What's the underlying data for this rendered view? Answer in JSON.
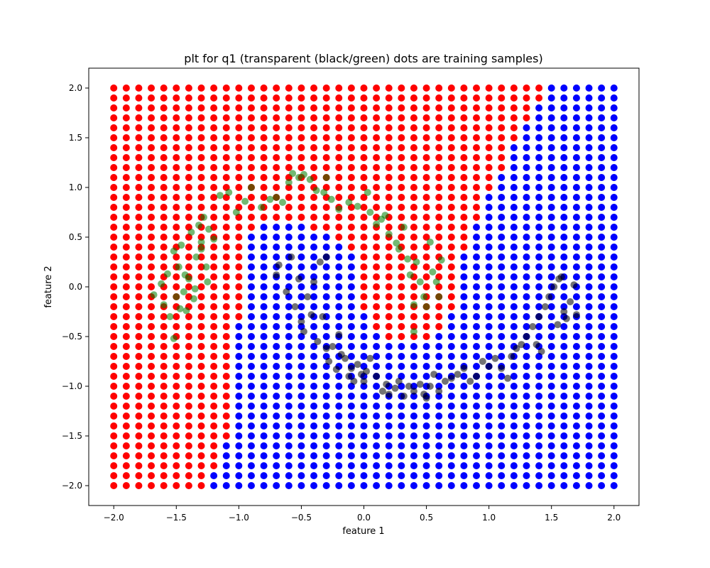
{
  "chart_data": {
    "type": "scatter",
    "title": "plt for q1 (transparent (black/green) dots are training samples)",
    "xlabel": "feature 1",
    "ylabel": "feature 2",
    "xlim": [
      -2.2,
      2.2
    ],
    "ylim": [
      -2.2,
      2.2
    ],
    "xticks": [
      "−2.0",
      "−1.5",
      "−1.0",
      "−0.5",
      "0.0",
      "0.5",
      "1.0",
      "1.5",
      "2.0"
    ],
    "yticks": [
      "−2.0",
      "−1.5",
      "−1.0",
      "−0.5",
      "0.0",
      "0.5",
      "1.0",
      "1.5",
      "2.0"
    ],
    "grid": false,
    "legend": "none",
    "colors": {
      "class_red": "#ff0000",
      "class_blue": "#0000ff",
      "train_green": "#008000",
      "train_black": "#000000"
    },
    "decision_grid": {
      "x_min": -2.0,
      "x_max": 2.0,
      "y_min": -2.0,
      "y_max": 2.0,
      "step": 0.1,
      "rows_top_to_bottom": [
        "RRRRRRRRRRRRRRRRRRRRRRRRRRRRRRRRRRRBBBBBB",
        "RRRRRRRRRRRRRRRRRRRRRRRRRRRRRRRRRRRBBBBBB",
        "RRRRRRRRRRRRRRRRRRRRRRRRRRRRRRRRRRBBBBBBB",
        "RRRRRRRRRRRRRRRRRRRRRRRRRRRRRRRRRRBBBBBBB",
        "RRRRRRRRRRRRRRRRRRRRRRRRRRRRRRRRRBBBBBBBB",
        "RRRRRRRRRRRRRRRRRRRRRRRRRRRRRRRRRBBBBBBBB",
        "RRRRRRRRRRRRRRRRRRRRRRRRRRRRRRRRBBBBBBBBB",
        "RRRRRRRRRRRRRRRRRRRRRRRRRRRRRRRRBBBBBBBBB",
        "RRRRRRRRRRRRRRRRRRRRRRRRRRRRRRRRBBBBBBBBB",
        "RRRRRRRRRRRRRRRRRRRRRRRRRRRRRRRBBBBBBBBBB",
        "RRRRRRRRRRRRRRRRRRRRRRRRRRRRRRRBBBBBBBBBB",
        "RRRRRRRRRRRRRRRRRRRRRRRRRRRRRRBBBBBBBBBBB",
        "RRRRRRRRRRRRRRRRRRRRRRRRRRRRRRBBBBBBBBBBB",
        "RRRRRRRRRRRRRRRRRRRRRRRRRRRRRRBBBBBBBBBBB",
        "RRRRRRRRRRRRBBBBRRRRRRRRRRRRRBBBBBBBBBBBB",
        "RRRRRRRRRRRBBBBBBBRRRRRRRRRRRBBBBBBBBBBBB",
        "RRRRRRRRRRRBBBBBBBBRRRRRRRRRRBBBBBBBBBBBB",
        "RRRRRRRRRRRBBBBBBBBBRRRRRRRRBBBBBBBBBBBBB",
        "RRRRRRRRRRRBBBBBBBBBRRRRRRRRBBBBBBBBBBBBB",
        "RRRRRRRRRRRBBBBBBBBBRRRRRRRRBBBBBBBBBBBBB",
        "RRRRRRRRRRRBBBBBBBBBRRRRRRRRBBBBBBBBBBBBB",
        "RRRRRRRRRRRBBBBBBBBBRRRRRRRRBBBBBBBBBBBBB",
        "RRRRRRRRRRRBBBBBBBBBRRRRRRRRBBBBBBBBBBBBB",
        "RRRRRRRRRRRBBBBBBBBBBRRRRRRBBBBBBBBBBBBBB",
        "RRRRRRRRRRBBBBBBBBBBBRRRRRRBBBBBBBBBBBBBB",
        "RRRRRRRRRRBBBBBBBBBBBBRRRRBBBBBBBBBBBBBBB",
        "RRRRRRRRRRBBBBBBBBBBBBBBBBBBBBBBBBBBBBBBB",
        "RRRRRRRRRRBBBBBBBBBBBBBBBBBBBBBBBBBBBBBBB",
        "RRRRRRRRRRBBBBBBBBBBBBBBBBBBBBBBBBBBBBBBB",
        "RRRRRRRRRRBBBBBBBBBBBBBBBBBBBBBBBBBBBBBBB",
        "RRRRRRRRRRBBBBBBBBBBBBBBBBBBBBBBBBBBBBBBB",
        "RRRRRRRRRRBBBBBBBBBBBBBBBBBBBBBBBBBBBBBBB",
        "RRRRRRRRRRBBBBBBBBBBBBBBBBBBBBBBBBBBBBBBB",
        "RRRRRRRRRRBBBBBBBBBBBBBBBBBBBBBBBBBBBBBBB",
        "RRRRRRRRRRBBBBBBBBBBBBBBBBBBBBBBBBBBBBBBB",
        "RRRRRRRRRRBBBBBBBBBBBBBBBBBBBBBBBBBBBBBBB",
        "RRRRRRRRRBBBBBBBBBBBBBBBBBBBBBBBBBBBBBBBB",
        "RRRRRRRRRBBBBBBBBBBBBBBBBBBBBBBBBBBBBBBBB",
        "RRRRRRRRRBBBBBBBBBBBBBBBBBBBBBBBBBBBBBBBB",
        "RRRRRRRRBBBBBBBBBBBBBBBBBBBBBBBBBBBBBBBBB",
        "RRRRRRRRBBBBBBBBBBBBBBBBBBBBBBBBBBBBBBBBB"
      ]
    },
    "training_green": [
      [
        -1.68,
        -0.08
      ],
      [
        -1.62,
        0.03
      ],
      [
        -1.6,
        -0.18
      ],
      [
        -1.57,
        0.13
      ],
      [
        -1.55,
        -0.3
      ],
      [
        -1.52,
        0.36
      ],
      [
        -1.5,
        -0.1
      ],
      [
        -1.48,
        0.2
      ],
      [
        -1.46,
        0.42
      ],
      [
        -1.44,
        -0.05
      ],
      [
        -1.42,
        -0.24
      ],
      [
        -1.4,
        0.08
      ],
      [
        -1.38,
        0.55
      ],
      [
        -1.36,
        -0.12
      ],
      [
        -1.34,
        0.3
      ],
      [
        -1.32,
        0.62
      ],
      [
        -1.3,
        0.45
      ],
      [
        -1.28,
        0.7
      ],
      [
        -1.26,
        0.2
      ],
      [
        -1.24,
        0.58
      ],
      [
        -1.2,
        0.48
      ],
      [
        -1.15,
        0.92
      ],
      [
        -1.08,
        0.95
      ],
      [
        -1.02,
        0.75
      ],
      [
        -0.95,
        0.86
      ],
      [
        -0.9,
        1.0
      ],
      [
        -0.82,
        0.8
      ],
      [
        -0.75,
        0.88
      ],
      [
        -0.7,
        0.9
      ],
      [
        -0.65,
        0.85
      ],
      [
        -0.6,
        1.05
      ],
      [
        -0.57,
        1.14
      ],
      [
        -0.52,
        1.1
      ],
      [
        -0.48,
        1.13
      ],
      [
        -0.43,
        1.08
      ],
      [
        -0.38,
        0.97
      ],
      [
        -0.32,
        0.95
      ],
      [
        -0.3,
        1.1
      ],
      [
        -0.26,
        0.88
      ],
      [
        -0.2,
        0.78
      ],
      [
        -0.12,
        0.85
      ],
      [
        -0.05,
        0.81
      ],
      [
        0.03,
        0.95
      ],
      [
        0.05,
        0.75
      ],
      [
        0.1,
        0.63
      ],
      [
        0.14,
        0.68
      ],
      [
        0.17,
        0.72
      ],
      [
        0.2,
        0.53
      ],
      [
        0.26,
        0.44
      ],
      [
        0.28,
        0.38
      ],
      [
        0.32,
        0.6
      ],
      [
        0.35,
        0.28
      ],
      [
        0.37,
        0.12
      ],
      [
        0.4,
        -0.18
      ],
      [
        0.42,
        0.25
      ],
      [
        0.45,
        0.05
      ],
      [
        0.48,
        -0.1
      ],
      [
        0.5,
        -0.2
      ],
      [
        0.53,
        0.45
      ],
      [
        0.55,
        0.15
      ],
      [
        0.58,
        0.05
      ],
      [
        0.6,
        -0.1
      ],
      [
        0.62,
        0.27
      ],
      [
        0.4,
        -0.45
      ],
      [
        -1.52,
        -0.52
      ],
      [
        -1.47,
        -0.22
      ],
      [
        -1.43,
        0.12
      ],
      [
        -1.35,
        -0.02
      ],
      [
        -1.3,
        0.38
      ],
      [
        -1.25,
        0.05
      ]
    ],
    "training_black": [
      [
        -0.7,
        0.12
      ],
      [
        -0.68,
        0.22
      ],
      [
        -0.62,
        -0.05
      ],
      [
        -0.58,
        0.3
      ],
      [
        -0.55,
        -0.2
      ],
      [
        -0.52,
        0.08
      ],
      [
        -0.5,
        -0.35
      ],
      [
        -0.48,
        -0.45
      ],
      [
        -0.45,
        -0.1
      ],
      [
        -0.42,
        -0.28
      ],
      [
        -0.4,
        0.05
      ],
      [
        -0.37,
        -0.55
      ],
      [
        -0.35,
        0.25
      ],
      [
        -0.33,
        -0.3
      ],
      [
        -0.3,
        -0.62
      ],
      [
        -0.28,
        -0.75
      ],
      [
        -0.25,
        -0.6
      ],
      [
        -0.22,
        -0.83
      ],
      [
        -0.2,
        -0.48
      ],
      [
        -0.18,
        -0.68
      ],
      [
        -0.15,
        -0.72
      ],
      [
        -0.12,
        -0.9
      ],
      [
        -0.1,
        -0.82
      ],
      [
        -0.08,
        -0.95
      ],
      [
        -0.05,
        -0.78
      ],
      [
        -0.02,
        -0.88
      ],
      [
        0.02,
        -0.85
      ],
      [
        0.05,
        -0.72
      ],
      [
        0.1,
        -0.9
      ],
      [
        0.15,
        -1.05
      ],
      [
        0.18,
        -0.98
      ],
      [
        0.2,
        -1.08
      ],
      [
        0.25,
        -1.02
      ],
      [
        0.28,
        -0.95
      ],
      [
        0.32,
        -1.1
      ],
      [
        0.36,
        -1.0
      ],
      [
        0.4,
        -1.05
      ],
      [
        0.45,
        -0.98
      ],
      [
        0.48,
        -1.08
      ],
      [
        0.5,
        -1.12
      ],
      [
        0.53,
        -1.0
      ],
      [
        0.56,
        -0.88
      ],
      [
        0.6,
        -1.05
      ],
      [
        0.65,
        -0.95
      ],
      [
        0.7,
        -0.92
      ],
      [
        0.75,
        -0.88
      ],
      [
        0.8,
        -0.82
      ],
      [
        0.85,
        -0.95
      ],
      [
        0.9,
        -0.9
      ],
      [
        0.95,
        -0.75
      ],
      [
        1.0,
        -0.8
      ],
      [
        1.05,
        -0.72
      ],
      [
        1.1,
        -0.82
      ],
      [
        1.15,
        -0.92
      ],
      [
        1.18,
        -0.7
      ],
      [
        1.22,
        -0.62
      ],
      [
        1.26,
        -0.58
      ],
      [
        1.3,
        -0.5
      ],
      [
        1.35,
        -0.4
      ],
      [
        1.4,
        -0.3
      ],
      [
        1.45,
        -0.2
      ],
      [
        1.48,
        -0.1
      ],
      [
        1.52,
        0.0
      ],
      [
        1.56,
        0.08
      ],
      [
        1.6,
        -0.25
      ],
      [
        1.62,
        -0.32
      ],
      [
        1.65,
        -0.15
      ],
      [
        1.68,
        0.02
      ],
      [
        1.7,
        -0.28
      ],
      [
        1.38,
        -0.58
      ],
      [
        1.42,
        -0.65
      ],
      [
        1.55,
        -0.38
      ],
      [
        1.58,
        0.1
      ],
      [
        -0.3,
        0.3
      ],
      [
        0.0,
        -0.95
      ]
    ]
  }
}
